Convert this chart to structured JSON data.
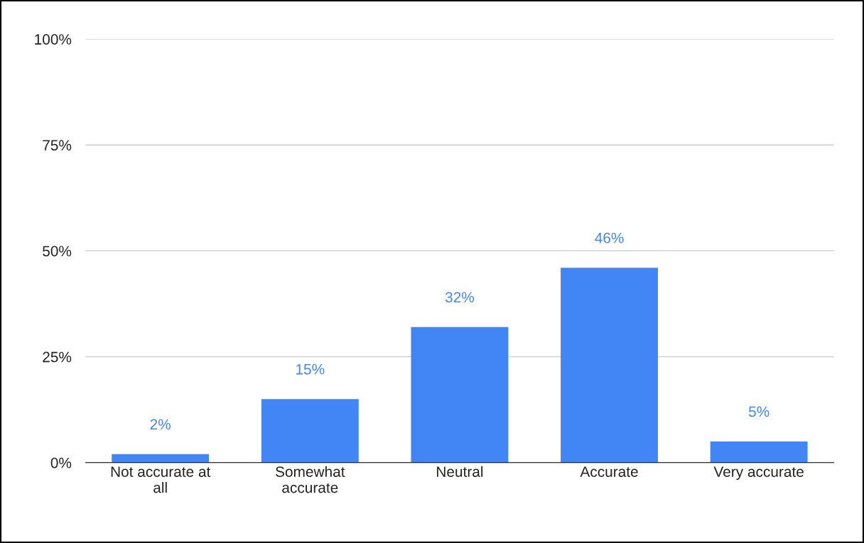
{
  "chart_data": {
    "type": "bar",
    "categories": [
      "Not accurate at\nall",
      "Somewhat\naccurate",
      "Neutral",
      "Accurate",
      "Very accurate"
    ],
    "values": [
      2,
      15,
      32,
      46,
      5
    ],
    "value_labels": [
      "2%",
      "15%",
      "32%",
      "46%",
      "5%"
    ],
    "color": "#4285f4",
    "ylim": [
      0,
      100
    ],
    "yticks": [
      {
        "value": 0,
        "label": "0%"
      },
      {
        "value": 25,
        "label": "25%"
      },
      {
        "value": 50,
        "label": "50%"
      },
      {
        "value": 75,
        "label": "75%"
      },
      {
        "value": 100,
        "label": "100%"
      }
    ],
    "grid": "y"
  }
}
